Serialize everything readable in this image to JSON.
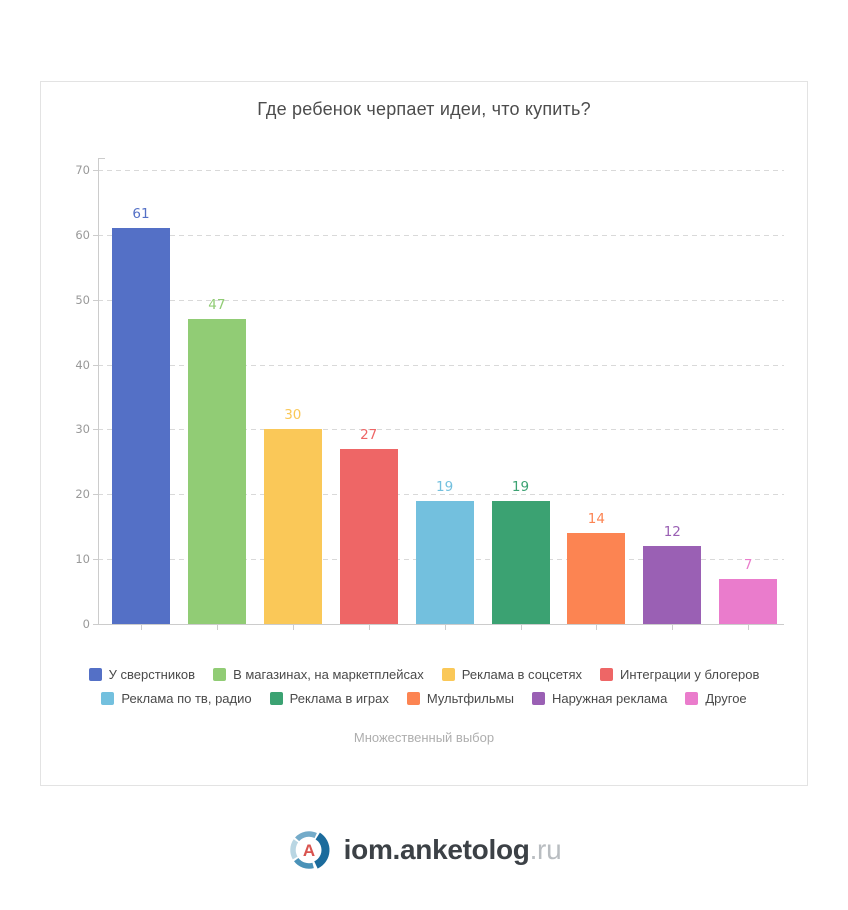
{
  "chart_data": {
    "type": "bar",
    "title": "Где ребенок черпает идеи, что купить?",
    "note": "Множественный выбор",
    "categories": [
      "У сверстников",
      "В магазинах, на маркетплейсах",
      "Реклама в соцсетях",
      "Интеграции у блогеров",
      "Реклама по тв, радио",
      "Реклама в играх",
      "Мультфильмы",
      "Наружная реклама",
      "Другое"
    ],
    "values": [
      61,
      47,
      30,
      27,
      19,
      19,
      14,
      12,
      7
    ],
    "colors": [
      "#5470c6",
      "#91cc75",
      "#fac858",
      "#ee6666",
      "#73c0de",
      "#3ba272",
      "#fc8452",
      "#9a60b4",
      "#ea7ccc"
    ],
    "xlabel": "",
    "ylabel": "",
    "ylim": [
      0,
      70
    ],
    "ytick_step": 10,
    "ytick_labels": [
      "0",
      "10",
      "20",
      "30",
      "40",
      "50",
      "60",
      "70"
    ],
    "grid": "horizontal-dashed",
    "legend_position": "bottom",
    "value_labels": "above-bars-colored-as-bar",
    "style": {
      "title_color": "#4c4c4c",
      "axis_line_color": "#cccccc",
      "grid_line_color": "#d9d9d9",
      "tick_label_color": "#999999",
      "legend_text_color": "#4a4a4a",
      "note_color": "#aeaeae"
    }
  },
  "footer": {
    "logo_icon": "anketolog-circle-a-icon",
    "logo_letter": "A",
    "logo_text_main": "iom.anketolog",
    "logo_text_suffix": ".ru",
    "colors": {
      "letter_red": "#d9534f",
      "arc_dark_blue": "#1b6b9c",
      "arc_mid_blue": "#74abc9",
      "arc_bottom_blue": "#4a92b8",
      "arc_light_blue": "#b9d6e3",
      "text_main": "#3c4146",
      "text_suffix": "#b9bdc1"
    }
  }
}
